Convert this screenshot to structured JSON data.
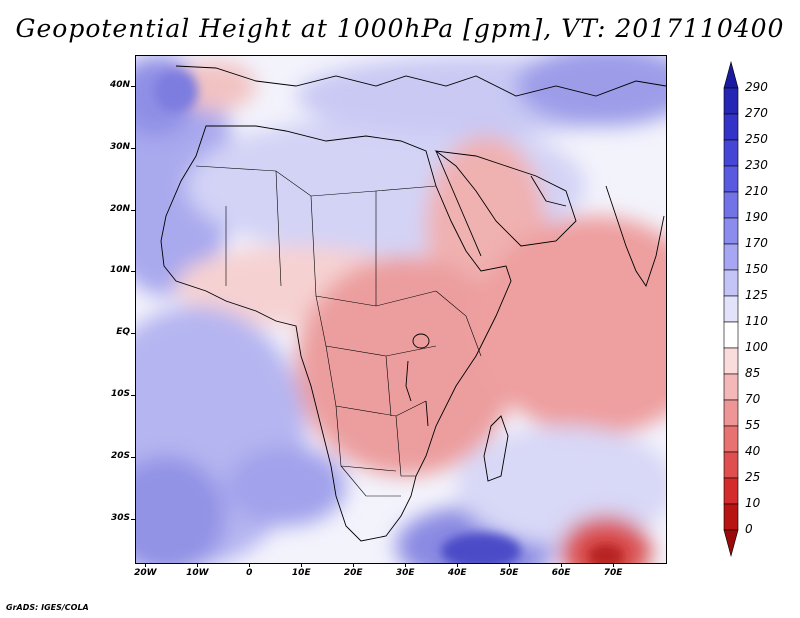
{
  "title": "Geopotential Height at 1000hPa [gpm], VT: 2017110400",
  "map": {
    "region": "Africa and surrounding oceans",
    "lat_labels": [
      "40N",
      "30N",
      "20N",
      "10N",
      "EQ",
      "10S",
      "20S",
      "30S"
    ],
    "lat_values": [
      40,
      30,
      20,
      10,
      0,
      -10,
      -20,
      -30
    ],
    "lon_labels": [
      "20W",
      "10W",
      "0",
      "10E",
      "20E",
      "30E",
      "40E",
      "50E",
      "60E",
      "70E"
    ],
    "lon_values": [
      -20,
      -10,
      0,
      10,
      20,
      30,
      40,
      50,
      60,
      70
    ],
    "lon_range": [
      -22,
      80
    ],
    "lat_range": [
      -37,
      45
    ]
  },
  "colorbar": {
    "labels": [
      "290",
      "270",
      "250",
      "230",
      "210",
      "190",
      "170",
      "150",
      "125",
      "110",
      "100",
      "85",
      "70",
      "55",
      "40",
      "25",
      "10",
      "0"
    ],
    "colors": [
      "#1a1aa0",
      "#2626b4",
      "#3333c8",
      "#4646d6",
      "#5a5ae0",
      "#7373e8",
      "#8c8cee",
      "#a6a6f2",
      "#c4c4f7",
      "#e2e2fb",
      "#ffffff",
      "#fbdcdc",
      "#f4b8b8",
      "#ee9696",
      "#e87272",
      "#e04f4f",
      "#d42c2c",
      "#b81414",
      "#9a0a0a"
    ]
  },
  "credit": "GrADS: IGES/COLA"
}
